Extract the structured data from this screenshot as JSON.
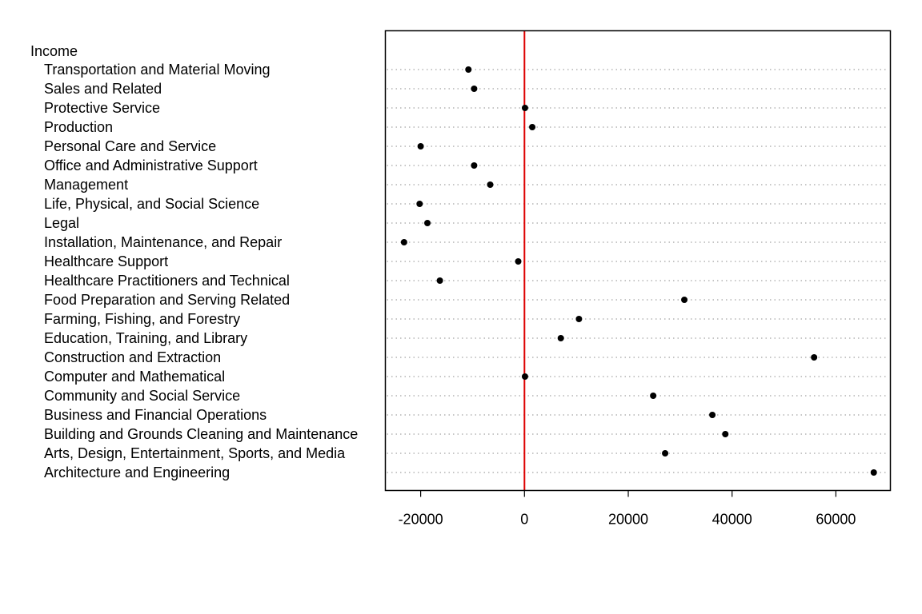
{
  "chart_data": {
    "type": "scatter",
    "group_label": "Income",
    "categories": [
      "Transportation and Material Moving",
      "Sales and Related",
      "Protective Service",
      "Production",
      "Personal Care and Service",
      "Office and Administrative Support",
      "Management",
      "Life, Physical, and Social Science",
      "Legal",
      "Installation, Maintenance, and Repair",
      "Healthcare Support",
      "Healthcare Practitioners and Technical",
      "Food Preparation and Serving Related",
      "Farming, Fishing, and Forestry",
      "Education, Training, and Library",
      "Construction and Extraction",
      "Computer and Mathematical",
      "Community and Social Service",
      "Business and Financial Operations",
      "Building and Grounds Cleaning and Maintenance",
      "Arts, Design, Entertainment, Sports, and Media",
      "Architecture and Engineering"
    ],
    "values": [
      -10800,
      -9700,
      100,
      1500,
      -20000,
      -9700,
      -6600,
      -20200,
      -18700,
      -23200,
      -1200,
      -16300,
      30800,
      10500,
      7000,
      55800,
      100,
      24800,
      36200,
      38700,
      27100,
      67300
    ],
    "xlim": [
      -26800,
      70500
    ],
    "xticks": [
      -20000,
      0,
      20000,
      40000,
      60000
    ],
    "xtick_labels": [
      "-20000",
      "0",
      "20000",
      "40000",
      "60000"
    ],
    "reference_line": {
      "x": 0,
      "color": "#dd0000"
    },
    "point_color": "#000000",
    "gridline_color": "#b4b4b4",
    "grid": "dotted horizontal per category",
    "xlabel": "",
    "ylabel": "",
    "title": ""
  }
}
